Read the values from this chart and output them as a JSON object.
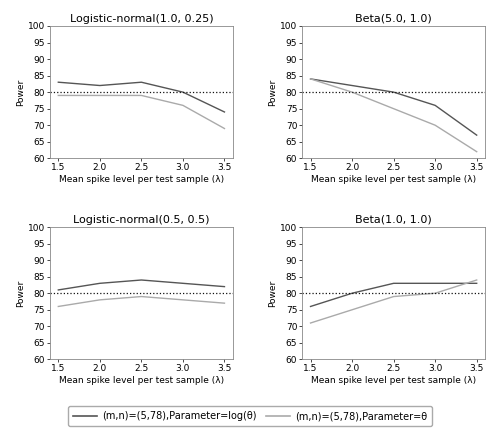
{
  "lambda_values": [
    1.5,
    2.0,
    2.5,
    3.0,
    3.5
  ],
  "subplots": [
    {
      "title": "Logistic-normal(1.0, 0.25)",
      "dark_line": [
        83,
        82,
        83,
        80,
        74
      ],
      "light_line": [
        79,
        79,
        79,
        76,
        69
      ]
    },
    {
      "title": "Beta(5.0, 1.0)",
      "dark_line": [
        84,
        82,
        80,
        76,
        67
      ],
      "light_line": [
        84,
        80,
        75,
        70,
        62
      ]
    },
    {
      "title": "Logistic-normal(0.5, 0.5)",
      "dark_line": [
        81,
        83,
        84,
        83,
        82
      ],
      "light_line": [
        76,
        78,
        79,
        78,
        77
      ]
    },
    {
      "title": "Beta(1.0, 1.0)",
      "dark_line": [
        76,
        80,
        83,
        83,
        83
      ],
      "light_line": [
        71,
        75,
        79,
        80,
        84
      ]
    }
  ],
  "hline_y": 80,
  "ylim": [
    60,
    100
  ],
  "yticks": [
    60,
    65,
    70,
    75,
    80,
    85,
    90,
    95,
    100
  ],
  "xlabel": "Mean spike level per test sample (λ)",
  "ylabel": "Power",
  "dark_color": "#555555",
  "light_color": "#aaaaaa",
  "hline_color": "#111111",
  "legend_dark_label": "(m,n)=(5,78),Parameter=log(θ)",
  "legend_light_label": "(m,n)=(5,78),Parameter=θ",
  "title_fontsize": 8,
  "axis_label_fontsize": 6.5,
  "tick_fontsize": 6.5,
  "legend_fontsize": 7
}
